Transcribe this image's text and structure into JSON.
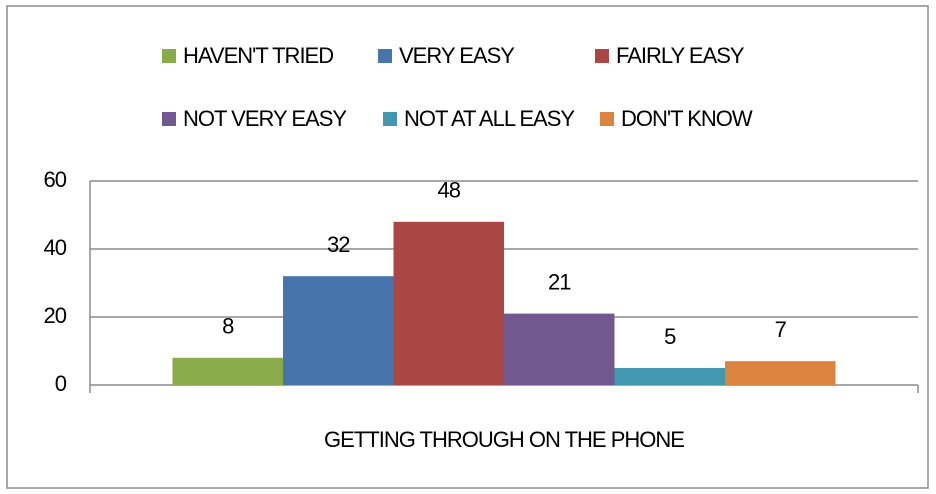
{
  "chart_data": {
    "type": "bar",
    "categories": [
      "GETTING THROUGH ON THE PHONE"
    ],
    "series": [
      {
        "name": "HAVEN'T TRIED",
        "color": "#8aab4a",
        "values": [
          8
        ]
      },
      {
        "name": "VERY EASY",
        "color": "#4674ab",
        "values": [
          32
        ]
      },
      {
        "name": "FAIRLY EASY",
        "color": "#aa4643",
        "values": [
          48
        ]
      },
      {
        "name": "NOT VERY EASY",
        "color": "#71588f",
        "values": [
          21
        ]
      },
      {
        "name": "NOT AT ALL EASY",
        "color": "#4198af",
        "values": [
          5
        ]
      },
      {
        "name": "DON'T KNOW",
        "color": "#db843d",
        "values": [
          7
        ]
      }
    ],
    "ylim": [
      0,
      60
    ],
    "yticks": [
      0,
      20,
      40,
      60
    ],
    "grid": true,
    "legend": "top"
  }
}
